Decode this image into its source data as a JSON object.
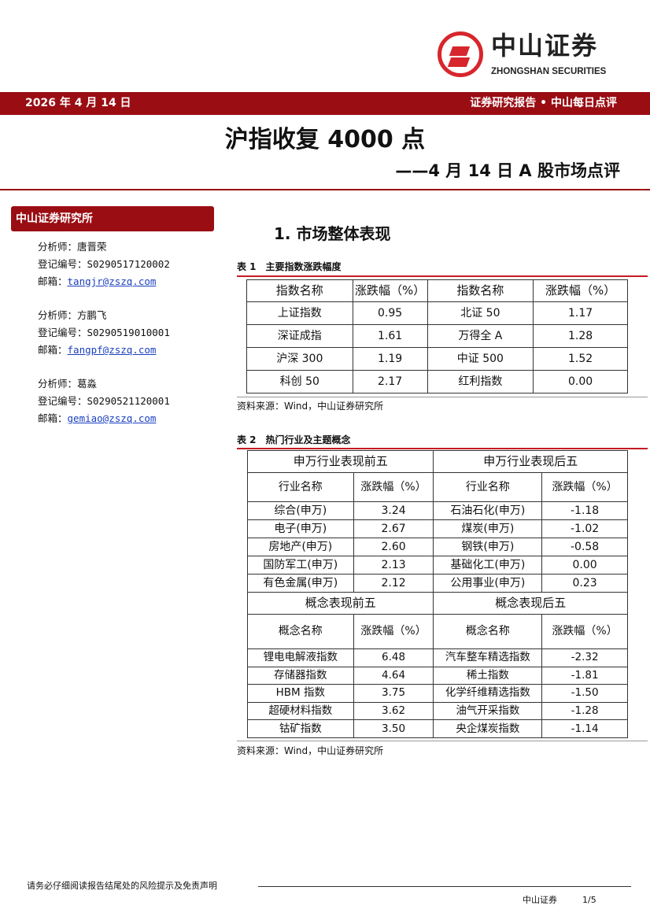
{
  "logo": {
    "cn": "中山证券",
    "en": "ZHONGSHAN SECURITIES"
  },
  "header": {
    "date": "2026 年 4 月 14 日",
    "category": "证券研究报告 • 中山每日点评"
  },
  "title": "沪指收复 4000 点",
  "subtitle": "——4 月 14 日 A 股市场点评",
  "sidebar": {
    "title": "中山证券研究所",
    "analysts": [
      {
        "name": "分析师：唐晋荣",
        "reg": "登记编号：S0290517120002",
        "email_label": "邮箱：",
        "email": "tangjr@zszq.com"
      },
      {
        "name": "分析师：方鹏飞",
        "reg": "登记编号：S0290519010001",
        "email_label": "邮箱：",
        "email": "fangpf@zszq.com"
      },
      {
        "name": "分析师：葛淼",
        "reg": "登记编号：S0290521120001",
        "email_label": "邮箱：",
        "email": "gemiao@zszq.com"
      }
    ]
  },
  "section": "1. 市场整体表现",
  "table1": {
    "caption": "表 1　主要指数涨跌幅度",
    "headers": [
      "指数名称",
      "涨跌幅（%）",
      "指数名称",
      "涨跌幅（%）"
    ],
    "rows": [
      [
        "上证指数",
        "0.95",
        "北证 50",
        "1.17"
      ],
      [
        "深证成指",
        "1.61",
        "万得全 A",
        "1.28"
      ],
      [
        "沪深 300",
        "1.19",
        "中证 500",
        "1.52"
      ],
      [
        "科创 50",
        "2.17",
        "红利指数",
        "0.00"
      ]
    ],
    "source": "资料来源：Wind，中山证券研究所"
  },
  "table2": {
    "caption": "表 2　热门行业及主题概念",
    "group1": [
      "申万行业表现前五",
      "申万行业表现后五"
    ],
    "headers1": [
      "行业名称",
      "涨跌幅（%）",
      "行业名称",
      "涨跌幅（%）"
    ],
    "rows1": [
      [
        "综合(申万)",
        "3.24",
        "石油石化(申万)",
        "-1.18"
      ],
      [
        "电子(申万)",
        "2.67",
        "煤炭(申万)",
        "-1.02"
      ],
      [
        "房地产(申万)",
        "2.60",
        "钢铁(申万)",
        "-0.58"
      ],
      [
        "国防军工(申万)",
        "2.13",
        "基础化工(申万)",
        "0.00"
      ],
      [
        "有色金属(申万)",
        "2.12",
        "公用事业(申万)",
        "0.23"
      ]
    ],
    "group2": [
      "概念表现前五",
      "概念表现后五"
    ],
    "headers2": [
      "概念名称",
      "涨跌幅（%）",
      "概念名称",
      "涨跌幅（%）"
    ],
    "rows2": [
      [
        "锂电电解液指数",
        "6.48",
        "汽车整车精选指数",
        "-2.32"
      ],
      [
        "存储器指数",
        "4.64",
        "稀土指数",
        "-1.81"
      ],
      [
        "HBM 指数",
        "3.75",
        "化学纤维精选指数",
        "-1.50"
      ],
      [
        "超硬材料指数",
        "3.62",
        "油气开采指数",
        "-1.28"
      ],
      [
        "钴矿指数",
        "3.50",
        "央企煤炭指数",
        "-1.14"
      ]
    ],
    "source": "资料来源：Wind，中山证券研究所"
  },
  "footer": {
    "disclaimer": "请务必仔细阅读报告结尾处的风险提示及免责声明",
    "company": "中山证券",
    "page": "1/5"
  }
}
